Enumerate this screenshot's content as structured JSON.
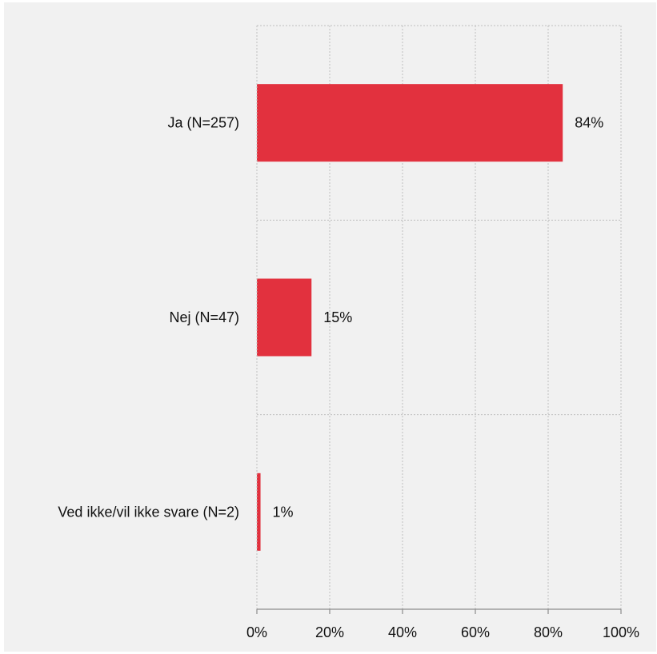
{
  "chart_data": {
    "type": "bar",
    "orientation": "horizontal",
    "categories": [
      "Ja (N=257)",
      "Nej (N=47)",
      "Ved ikke/vil ikke svare (N=2)"
    ],
    "values": [
      84,
      15,
      1
    ],
    "value_labels": [
      "84%",
      "15%",
      "1%"
    ],
    "xlim": [
      0,
      100
    ],
    "xticks": [
      0,
      20,
      40,
      60,
      80,
      100
    ],
    "xtick_labels": [
      "0%",
      "20%",
      "40%",
      "60%",
      "80%",
      "100%"
    ],
    "title": "",
    "xlabel": "",
    "ylabel": "",
    "grid": true,
    "legend": "none",
    "colors": {
      "bar": "#e2313e",
      "background": "#f1f1f1",
      "grid": "#bfbfbf",
      "axis": "#8c8c8c",
      "text": "#111111"
    }
  }
}
